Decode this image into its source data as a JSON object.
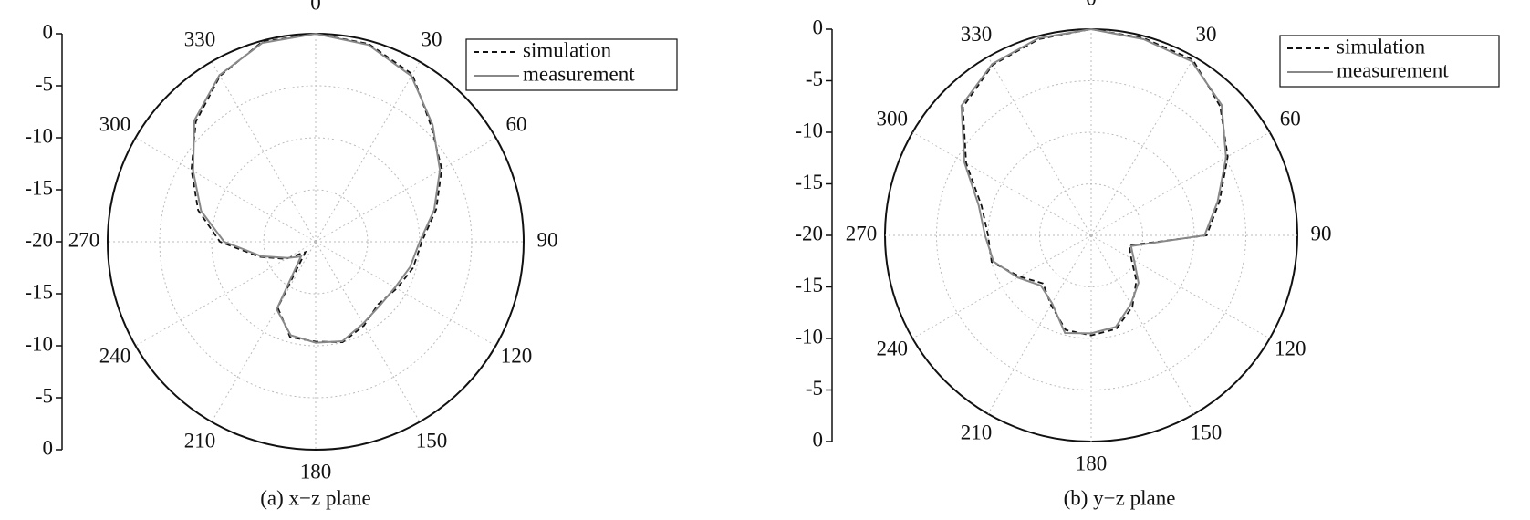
{
  "chart_data": [
    {
      "type": "polar",
      "caption": "(a)  x−z plane",
      "theta": [
        0,
        15,
        30,
        45,
        60,
        75,
        90,
        105,
        120,
        135,
        150,
        165,
        180,
        195,
        210,
        225,
        240,
        255,
        270,
        285,
        300,
        315,
        330,
        345
      ],
      "rlim": [
        -20,
        0
      ],
      "rticks": [
        0,
        -5,
        -10,
        -15,
        -20
      ],
      "thetaticks": [
        0,
        30,
        60,
        90,
        120,
        150,
        180,
        210,
        240,
        270,
        300,
        330
      ],
      "grid": true,
      "legend": "upper right",
      "series": [
        {
          "name": "simulation",
          "color": "#111111",
          "dash": true,
          "values": [
            0,
            -0.3,
            -1.4,
            -4.3,
            -6,
            -8,
            -9.8,
            -10.3,
            -11,
            -11.5,
            -10.7,
            -10,
            -10.4,
            -10.5,
            -12.7,
            -18.6,
            -16.7,
            -14.4,
            -10.8,
            -8.3,
            -6.2,
            -3.7,
            -1.6,
            -0.1
          ]
        },
        {
          "name": "measurement",
          "color": "#888888",
          "dash": false,
          "values": [
            0,
            -0.4,
            -1.6,
            -4.1,
            -6.2,
            -8.2,
            -10,
            -10.6,
            -11.2,
            -11.3,
            -10.9,
            -10.1,
            -10.3,
            -10.7,
            -12.5,
            -18,
            -16.9,
            -14.6,
            -11.2,
            -8.6,
            -6.4,
            -3.5,
            -1.5,
            -0.2
          ]
        }
      ]
    },
    {
      "type": "polar",
      "caption": "(b)  y−z plane",
      "theta": [
        0,
        15,
        30,
        45,
        60,
        75,
        90,
        105,
        120,
        135,
        150,
        165,
        180,
        195,
        210,
        225,
        240,
        255,
        270,
        285,
        300,
        315,
        330,
        345
      ],
      "rlim": [
        -20,
        0
      ],
      "rticks": [
        0,
        -5,
        -10,
        -15,
        -20
      ],
      "thetaticks": [
        0,
        30,
        60,
        90,
        120,
        150,
        180,
        210,
        240,
        270,
        300,
        330
      ],
      "grid": true,
      "legend": "upper right",
      "series": [
        {
          "name": "simulation",
          "color": "#111111",
          "dash": true,
          "values": [
            0,
            -0.2,
            -0.3,
            -2.3,
            -4.7,
            -7.1,
            -8.8,
            -16.2,
            -15.5,
            -13.8,
            -12,
            -10.6,
            -10.3,
            -10.5,
            -12.2,
            -13.4,
            -12,
            -10,
            -10,
            -9,
            -6,
            -2.4,
            -0.9,
            -0.3
          ]
        },
        {
          "name": "measurement",
          "color": "#888888",
          "dash": false,
          "values": [
            0,
            -0.3,
            -0.5,
            -2.1,
            -4.9,
            -7.3,
            -9,
            -16,
            -15.2,
            -13.5,
            -12.3,
            -10.8,
            -10.5,
            -10.2,
            -12.4,
            -13.1,
            -11.8,
            -10.2,
            -9.7,
            -8.7,
            -5.8,
            -2.2,
            -0.8,
            -0.2
          ]
        }
      ]
    }
  ]
}
